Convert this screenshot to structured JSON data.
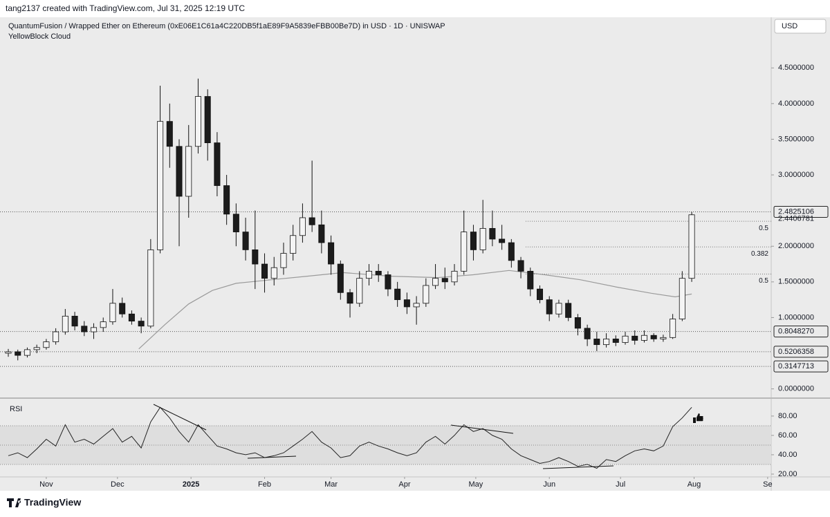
{
  "chart_data": {
    "type": "candlestick",
    "credit": "tang2137 created with TradingView.com, Jul 31, 2025 12:19 UTC",
    "title": "QuantumFusion / Wrapped Ether on Ethereum (0xE06E1C61a4C220DB5f1aE89F9A5839eFBB00Be7D) in USD · 1D · UNISWAP",
    "subtitle": "YellowBlock Cloud",
    "currency": "USD",
    "branding": "TradingView",
    "up_color": "#f4f4f4",
    "down_color": "#1c1c1c",
    "wick_color": "#111111",
    "xlim": [
      -19.5,
      305.5
    ],
    "xticks": [
      {
        "value": 0,
        "label": "Nov"
      },
      {
        "value": 30,
        "label": "Dec"
      },
      {
        "value": 61,
        "label": "2025",
        "bold": true
      },
      {
        "value": 92,
        "label": "Feb"
      },
      {
        "value": 120,
        "label": "Mar"
      },
      {
        "value": 151,
        "label": "Apr"
      },
      {
        "value": 181,
        "label": "May"
      },
      {
        "value": 212,
        "label": "Jun"
      },
      {
        "value": 242,
        "label": "Jul"
      },
      {
        "value": 273,
        "label": "Aug"
      },
      {
        "value": 304,
        "label": "Se"
      }
    ],
    "ylim": [
      -0.12,
      5.21
    ],
    "yticks": [
      {
        "value": 0,
        "label": "0.0000000"
      },
      {
        "value": 1,
        "label": "1.0000000"
      },
      {
        "value": 1.5,
        "label": "1.5000000"
      },
      {
        "value": 2,
        "label": "2.0000000"
      },
      {
        "value": 3,
        "label": "3.0000000"
      },
      {
        "value": 3.5,
        "label": "3.5000000"
      },
      {
        "value": 4,
        "label": "4.0000000"
      },
      {
        "value": 4.5,
        "label": "4.5000000"
      }
    ],
    "grid": false,
    "x": [
      -16,
      -12,
      -8,
      -4,
      0,
      4,
      8,
      12,
      16,
      20,
      24,
      28,
      32,
      36,
      40,
      44,
      48,
      52,
      56,
      60,
      64,
      68,
      72,
      76,
      80,
      84,
      88,
      92,
      96,
      100,
      104,
      108,
      112,
      116,
      120,
      124,
      128,
      132,
      136,
      140,
      144,
      148,
      152,
      156,
      160,
      164,
      168,
      172,
      176,
      180,
      184,
      188,
      192,
      196,
      200,
      204,
      208,
      212,
      216,
      220,
      224,
      228,
      232,
      236,
      240,
      244,
      248,
      252,
      256,
      260,
      264,
      268,
      272
    ],
    "open": [
      0.5,
      0.52,
      0.47,
      0.55,
      0.58,
      0.66,
      0.8,
      1.02,
      0.88,
      0.8,
      0.86,
      0.94,
      1.2,
      1.05,
      0.95,
      0.88,
      1.95,
      3.75,
      3.4,
      2.7,
      3.4,
      4.1,
      3.45,
      2.85,
      2.45,
      2.2,
      1.95,
      1.75,
      1.55,
      1.7,
      1.9,
      2.15,
      2.4,
      2.3,
      2.05,
      1.75,
      1.35,
      1.2,
      1.55,
      1.65,
      1.6,
      1.4,
      1.25,
      1.15,
      1.2,
      1.45,
      1.55,
      1.5,
      1.65,
      2.2,
      1.95,
      2.25,
      2.1,
      2.05,
      1.8,
      1.65,
      1.4,
      1.25,
      1.05,
      1.2,
      1.0,
      0.85,
      0.7,
      0.62,
      0.7,
      0.65,
      0.74,
      0.68,
      0.75,
      0.7,
      0.72,
      0.98,
      1.55
    ],
    "high": [
      0.56,
      0.55,
      0.58,
      0.62,
      0.7,
      0.85,
      1.12,
      1.08,
      0.95,
      0.92,
      1.0,
      1.4,
      1.28,
      1.1,
      1.0,
      2.1,
      4.25,
      4.0,
      3.5,
      3.7,
      4.35,
      4.2,
      3.6,
      3.0,
      2.6,
      2.4,
      2.5,
      1.9,
      1.85,
      2.05,
      2.3,
      2.6,
      3.2,
      2.5,
      2.15,
      1.8,
      1.4,
      1.65,
      1.75,
      1.75,
      1.65,
      1.5,
      1.35,
      1.3,
      1.55,
      1.75,
      1.7,
      1.75,
      2.5,
      2.3,
      2.65,
      2.5,
      2.3,
      2.1,
      1.85,
      1.7,
      1.45,
      1.3,
      1.25,
      1.25,
      1.05,
      0.9,
      0.8,
      0.78,
      0.75,
      0.8,
      0.82,
      0.82,
      0.78,
      0.76,
      1.05,
      1.65,
      2.48
    ],
    "low": [
      0.45,
      0.4,
      0.44,
      0.5,
      0.55,
      0.62,
      0.76,
      0.82,
      0.74,
      0.7,
      0.8,
      0.9,
      1.0,
      0.9,
      0.78,
      0.85,
      1.9,
      3.1,
      2.0,
      2.4,
      3.3,
      3.2,
      2.7,
      2.3,
      2.0,
      1.8,
      1.4,
      1.35,
      1.45,
      1.6,
      1.8,
      2.05,
      2.2,
      1.9,
      1.6,
      1.25,
      1.0,
      1.15,
      1.45,
      1.5,
      1.3,
      1.15,
      1.05,
      0.9,
      1.15,
      1.4,
      1.4,
      1.45,
      1.6,
      1.8,
      1.9,
      2.0,
      1.95,
      1.7,
      1.55,
      1.3,
      1.2,
      0.95,
      1.0,
      0.95,
      0.75,
      0.6,
      0.53,
      0.58,
      0.6,
      0.62,
      0.62,
      0.65,
      0.66,
      0.66,
      0.7,
      0.95,
      1.5
    ],
    "close": [
      0.52,
      0.47,
      0.55,
      0.58,
      0.66,
      0.8,
      1.02,
      0.88,
      0.8,
      0.86,
      0.94,
      1.2,
      1.05,
      0.95,
      0.88,
      1.95,
      3.75,
      3.4,
      2.7,
      3.4,
      4.1,
      3.45,
      2.85,
      2.45,
      2.2,
      1.95,
      1.75,
      1.55,
      1.7,
      1.9,
      2.15,
      2.4,
      2.3,
      2.05,
      1.75,
      1.35,
      1.2,
      1.55,
      1.65,
      1.6,
      1.4,
      1.25,
      1.15,
      1.2,
      1.45,
      1.55,
      1.5,
      1.65,
      2.2,
      1.95,
      2.25,
      2.1,
      2.05,
      1.8,
      1.65,
      1.4,
      1.25,
      1.05,
      1.2,
      1.0,
      0.85,
      0.7,
      0.62,
      0.7,
      0.65,
      0.74,
      0.68,
      0.75,
      0.7,
      0.72,
      0.98,
      1.55,
      2.4406781
    ],
    "last_price_label": "2.4406781",
    "ma": {
      "color": "#9a9a9a",
      "x": [
        39,
        50,
        60,
        70,
        80,
        95,
        110,
        125,
        145,
        165,
        180,
        195,
        210,
        225,
        240,
        255,
        265,
        272
      ],
      "values": [
        0.56,
        0.9,
        1.19,
        1.38,
        1.48,
        1.53,
        1.58,
        1.63,
        1.58,
        1.56,
        1.6,
        1.66,
        1.6,
        1.53,
        1.43,
        1.34,
        1.29,
        1.33
      ]
    },
    "levels": [
      {
        "value": 2.4825106,
        "label": "2.4825106"
      },
      {
        "value": 0.804827,
        "label": "0.8048270"
      },
      {
        "value": 0.5206358,
        "label": "0.5206358"
      },
      {
        "value": 0.3147713,
        "label": "0.3147713"
      }
    ],
    "fib": [
      {
        "value": 2.35,
        "label": "0.5"
      },
      {
        "value": 1.99,
        "label": "0.382"
      },
      {
        "value": 1.61,
        "label": "0.5"
      }
    ],
    "rsi": {
      "name": "RSI",
      "color": "#222222",
      "ylim": [
        17.1,
        97.1
      ],
      "yticks": [
        {
          "value": 20,
          "label": "20.00"
        },
        {
          "value": 40,
          "label": "40.00"
        },
        {
          "value": 60,
          "label": "60.00"
        },
        {
          "value": 80,
          "label": "80.00"
        }
      ],
      "bands": [
        70,
        50,
        30
      ],
      "values": [
        39,
        42,
        37,
        46,
        56,
        49,
        71,
        53,
        56,
        51,
        59,
        67,
        53,
        59,
        47,
        74,
        89,
        78,
        64,
        53,
        71,
        60,
        49,
        46,
        42,
        40,
        42,
        37,
        39,
        42,
        49,
        56,
        64,
        53,
        47,
        37,
        39,
        49,
        53,
        49,
        46,
        42,
        39,
        42,
        53,
        59,
        51,
        60,
        71,
        64,
        67,
        60,
        56,
        46,
        39,
        35,
        31,
        33,
        37,
        33,
        28,
        30,
        26,
        35,
        33,
        39,
        44,
        46,
        44,
        49,
        69,
        78,
        89
      ]
    }
  }
}
